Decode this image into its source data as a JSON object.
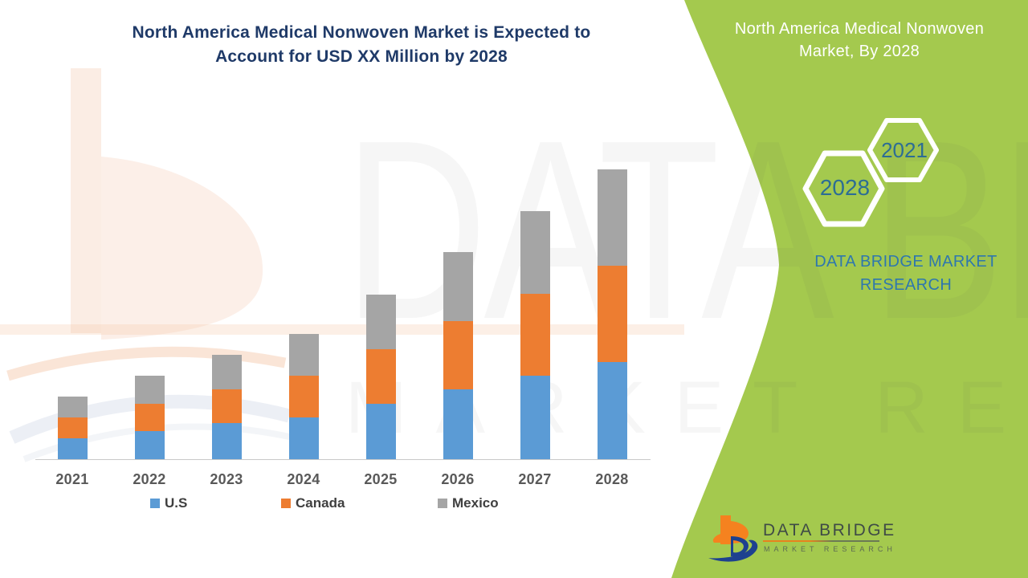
{
  "headline": "North America Medical Nonwoven Market is Expected to\nAccount for USD XX Million by 2028",
  "panel": {
    "title": "North America Medical Nonwoven\nMarket, By 2028",
    "hexagons": {
      "large": "2028",
      "small": "2021"
    },
    "brand_caption": "DATA BRIDGE MARKET\nRESEARCH"
  },
  "watermark": {
    "line1": "DATA BRIDGE",
    "line2": "MARKET RESEARCH"
  },
  "logo": {
    "name": "DATA BRIDGE",
    "subtitle": "MARKET  RESEARCH"
  },
  "legend": [
    {
      "label": "U.S",
      "color": "#5b9bd5"
    },
    {
      "label": "Canada",
      "color": "#ed7d31"
    },
    {
      "label": "Mexico",
      "color": "#a5a5a5"
    }
  ],
  "chart_data": {
    "type": "bar",
    "stacked": true,
    "title": "North America Medical Nonwoven Market is Expected to Account for USD XX Million by 2028",
    "xlabel": "",
    "ylabel": "",
    "categories": [
      "2021",
      "2022",
      "2023",
      "2024",
      "2025",
      "2026",
      "2027",
      "2028"
    ],
    "series": [
      {
        "name": "U.S",
        "color": "#5b9bd5",
        "values": [
          26,
          35,
          45,
          52,
          69,
          87,
          104,
          121
        ]
      },
      {
        "name": "Canada",
        "color": "#ed7d31",
        "values": [
          26,
          34,
          42,
          52,
          68,
          85,
          102,
          120
        ]
      },
      {
        "name": "Mexico",
        "color": "#a5a5a5",
        "values": [
          26,
          35,
          43,
          52,
          68,
          86,
          103,
          120
        ]
      }
    ],
    "value_note": "relative units read from bar pixel heights; no numeric y-axis shown (values labeled XX in title)",
    "ylim": [
      0,
      380
    ],
    "grid": false,
    "legend_position": "bottom"
  },
  "colors": {
    "panel_green": "#a4c94e",
    "headline_navy": "#1f3a68",
    "hex_year_blue": "#2c6d95",
    "caption_blue": "#2e77ae",
    "axis_gray": "#c9c9c9",
    "tick_label_gray": "#595959",
    "us_blue": "#5b9bd5",
    "canada_orange": "#ed7d31",
    "mexico_gray": "#a5a5a5",
    "logo_orange": "#f5821f",
    "logo_navy": "#1d418f"
  }
}
